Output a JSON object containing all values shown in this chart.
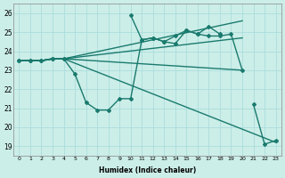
{
  "xlabel": "Humidex (Indice chaleur)",
  "bg_color": "#cceee8",
  "grid_color": "#aadddd",
  "line_color": "#1a7a6e",
  "ylim": [
    18.5,
    26.5
  ],
  "xlim": [
    -0.5,
    23.5
  ],
  "yticks": [
    19,
    20,
    21,
    22,
    23,
    24,
    25,
    26
  ],
  "xticks": [
    0,
    1,
    2,
    3,
    4,
    5,
    6,
    7,
    8,
    9,
    10,
    11,
    12,
    13,
    14,
    15,
    16,
    17,
    18,
    19,
    20,
    21,
    22,
    23
  ],
  "series": [
    {
      "x": [
        0,
        1,
        2,
        3,
        4,
        5,
        6,
        7,
        8,
        9,
        10,
        11,
        12,
        13,
        14,
        15,
        16,
        17,
        18,
        19,
        20,
        21,
        22,
        23
      ],
      "y": [
        23.5,
        23.5,
        23.5,
        23.6,
        23.6,
        22.8,
        21.3,
        20.9,
        20.9,
        21.5,
        21.5,
        24.6,
        24.7,
        24.5,
        24.4,
        25.1,
        24.9,
        24.8,
        24.8,
        24.9,
        23.0,
        null,
        null,
        null
      ],
      "marker": "D",
      "markersize": 2.0,
      "linewidth": 1.0
    },
    {
      "x": [
        0,
        1,
        2,
        3,
        4,
        5,
        6,
        7,
        8,
        9,
        10,
        11,
        12,
        13,
        14,
        15,
        16,
        17,
        18,
        19,
        20,
        21,
        22,
        23
      ],
      "y": [
        23.5,
        23.5,
        23.5,
        23.6,
        23.6,
        null,
        null,
        null,
        null,
        null,
        25.9,
        24.6,
        24.7,
        24.5,
        24.8,
        25.1,
        24.9,
        25.3,
        24.9,
        null,
        null,
        21.2,
        19.1,
        19.3
      ],
      "marker": "D",
      "markersize": 2.0,
      "linewidth": 1.0
    },
    {
      "x": [
        0,
        1,
        2,
        3,
        4,
        23
      ],
      "y": [
        23.5,
        23.5,
        23.5,
        23.6,
        23.6,
        19.2
      ],
      "marker": null,
      "markersize": 0,
      "linewidth": 1.0
    },
    {
      "x": [
        0,
        1,
        2,
        3,
        4,
        20
      ],
      "y": [
        23.5,
        23.5,
        23.5,
        23.6,
        23.6,
        23.0
      ],
      "marker": null,
      "markersize": 0,
      "linewidth": 1.0
    },
    {
      "x": [
        0,
        1,
        2,
        3,
        4,
        20
      ],
      "y": [
        23.5,
        23.5,
        23.5,
        23.6,
        23.6,
        24.7
      ],
      "marker": null,
      "markersize": 0,
      "linewidth": 1.0
    },
    {
      "x": [
        0,
        1,
        2,
        3,
        4,
        20
      ],
      "y": [
        23.5,
        23.5,
        23.5,
        23.6,
        23.6,
        25.6
      ],
      "marker": null,
      "markersize": 0,
      "linewidth": 1.0
    }
  ]
}
